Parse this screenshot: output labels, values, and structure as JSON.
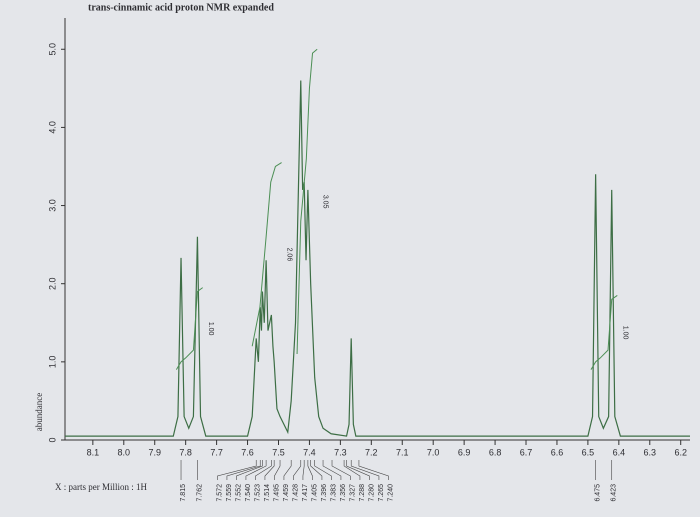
{
  "chart_data": {
    "type": "line",
    "title": "trans-cinnamic acid proton NMR expanded",
    "xlabel": "X : parts per Million : 1H",
    "ylabel": "abundance",
    "color": "#3d6e45",
    "integral_color": "#4c8f55",
    "xlim": [
      8.19,
      6.17
    ],
    "ylim": [
      0,
      5.4
    ],
    "xticks": [
      8.1,
      {
        "value": 8,
        "label": "8.0"
      },
      7.9,
      7.8,
      7.7,
      7.6,
      7.5,
      7.4,
      7.3,
      7.2,
      7.1,
      {
        "value": 7,
        "label": "7.0"
      },
      6.9,
      6.8,
      6.7,
      6.6,
      6.5,
      6.4,
      6.3,
      6.2
    ],
    "yticks": [
      0,
      {
        "value": 1,
        "label": "1.0"
      },
      {
        "value": 2,
        "label": "2.0"
      },
      {
        "value": 3,
        "label": "3.0"
      },
      {
        "value": 4,
        "label": "4.0"
      },
      {
        "value": 5,
        "label": "5.0"
      }
    ],
    "x": [
      8.19,
      7.84,
      7.825,
      7.815,
      7.805,
      7.79,
      7.775,
      7.762,
      7.752,
      7.735,
      7.6,
      7.585,
      7.572,
      7.565,
      7.559,
      7.555,
      7.552,
      7.546,
      7.54,
      7.534,
      7.523,
      7.518,
      7.514,
      7.505,
      7.495,
      7.47,
      7.459,
      7.445,
      7.428,
      7.422,
      7.417,
      7.411,
      7.405,
      7.396,
      7.383,
      7.37,
      7.356,
      7.33,
      7.28,
      7.272,
      7.265,
      7.258,
      7.25,
      6.5,
      6.485,
      6.475,
      6.465,
      6.45,
      6.433,
      6.423,
      6.413,
      6.395,
      6.17
    ],
    "values": [
      0.05,
      0.05,
      0.3,
      2.33,
      0.3,
      0.15,
      0.3,
      2.6,
      0.3,
      0.05,
      0.05,
      0.3,
      1.3,
      1.0,
      1.7,
      1.4,
      1.9,
      1.5,
      2.3,
      1.4,
      1.6,
      1.2,
      1.0,
      0.4,
      0.3,
      0.1,
      0.5,
      1.5,
      4.6,
      3.2,
      3.3,
      2.3,
      3.2,
      2.0,
      0.8,
      0.3,
      0.15,
      0.08,
      0.05,
      0.2,
      1.3,
      0.2,
      0.05,
      0.05,
      0.3,
      3.4,
      0.3,
      0.15,
      0.3,
      3.2,
      0.3,
      0.05,
      0.05
    ],
    "integrals": [
      {
        "label": "1.00",
        "x": [
          7.83,
          7.815,
          7.8,
          7.775,
          7.762,
          7.745
        ],
        "values": [
          0.9,
          1.0,
          1.05,
          1.15,
          1.9,
          1.95
        ]
      },
      {
        "label": "2.06",
        "x": [
          7.585,
          7.56,
          7.54,
          7.525,
          7.51,
          7.49
        ],
        "values": [
          1.2,
          1.7,
          2.6,
          3.3,
          3.5,
          3.55
        ]
      },
      {
        "label": "3.05",
        "x": [
          7.44,
          7.428,
          7.41,
          7.4,
          7.39,
          7.375
        ],
        "values": [
          1.1,
          2.8,
          3.6,
          4.5,
          4.95,
          5.0
        ]
      },
      {
        "label": "1.00",
        "x": [
          6.49,
          6.475,
          6.46,
          6.435,
          6.423,
          6.405
        ],
        "values": [
          0.9,
          1.0,
          1.05,
          1.15,
          1.8,
          1.85
        ]
      }
    ],
    "peak_labels": [
      7.815,
      7.762,
      7.572,
      7.559,
      7.552,
      {
        "value": 7.54,
        "label": "7.540"
      },
      7.523,
      7.514,
      7.495,
      7.459,
      7.428,
      7.417,
      7.405,
      7.396,
      7.383,
      7.356,
      7.327,
      7.288,
      {
        "value": 7.28,
        "label": "7.280"
      },
      7.265,
      {
        "value": 7.24,
        "label": "7.240"
      },
      6.475,
      6.423
    ]
  }
}
